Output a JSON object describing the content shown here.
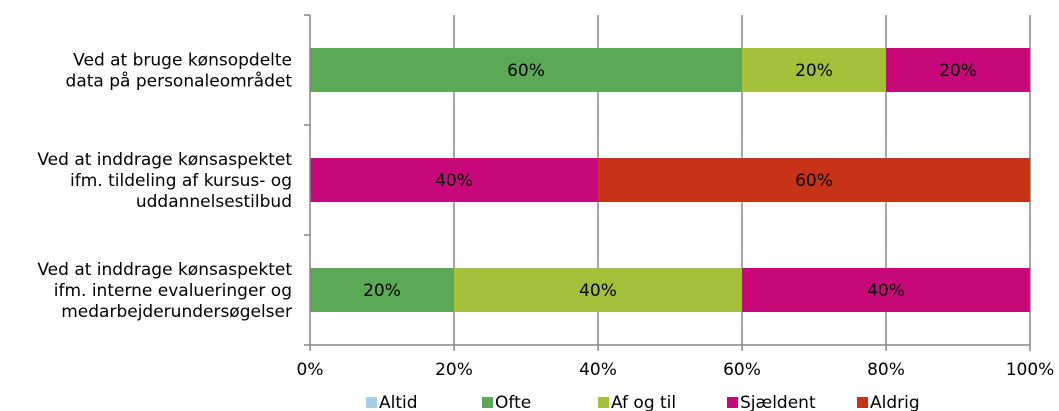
{
  "chart_data": {
    "type": "bar",
    "orientation": "horizontal",
    "stacked": "percent",
    "categories": [
      [
        "Ved at bruge kønsopdelte",
        "data på personaleområdet"
      ],
      [
        "Ved at inddrage kønsaspektet",
        "ifm. tildeling af kursus- og",
        "uddannelsestilbud"
      ],
      [
        "Ved at inddrage kønsaspektet",
        "ifm. interne evalueringer og",
        "medarbejderundersøgelser"
      ]
    ],
    "series": [
      {
        "name": "Altid",
        "color": "#a6cee9",
        "values": [
          0,
          0,
          0
        ],
        "labels": [
          "",
          "",
          ""
        ]
      },
      {
        "name": "Ofte",
        "color": "#5ba954",
        "values": [
          60,
          0,
          20
        ],
        "labels": [
          "60%",
          "",
          "20%"
        ]
      },
      {
        "name": "Af og til",
        "color": "#a3c03b",
        "values": [
          20,
          0,
          40
        ],
        "labels": [
          "20%",
          "",
          "40%"
        ]
      },
      {
        "name": "Sjældent",
        "color": "#c8087a",
        "values": [
          20,
          40,
          40
        ],
        "labels": [
          "20%",
          "40%",
          "40%"
        ]
      },
      {
        "name": "Aldrig",
        "color": "#c73317",
        "values": [
          0,
          60,
          0
        ],
        "labels": [
          "",
          "60%",
          ""
        ]
      }
    ],
    "xlim": [
      0,
      100
    ],
    "x_ticks": [
      "0%",
      "20%",
      "40%",
      "60%",
      "80%",
      "100%"
    ],
    "grid": true,
    "legend_position": "bottom",
    "title": "",
    "xlabel": "",
    "ylabel": ""
  }
}
